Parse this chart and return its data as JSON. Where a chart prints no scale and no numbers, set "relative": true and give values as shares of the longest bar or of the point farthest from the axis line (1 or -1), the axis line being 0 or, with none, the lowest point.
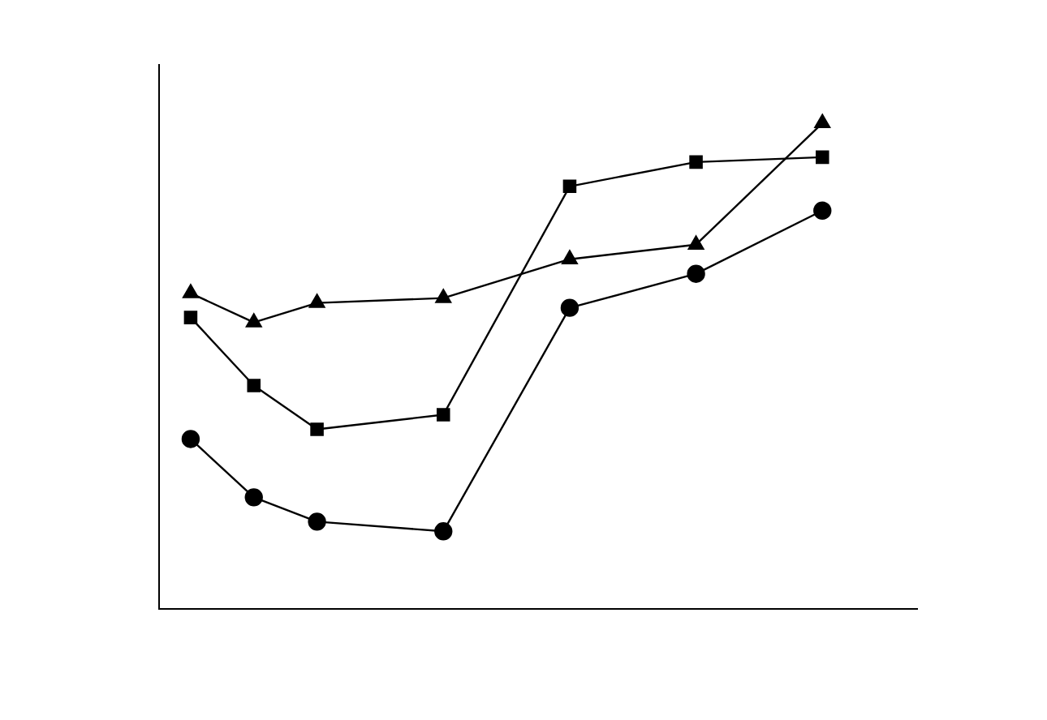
{
  "chart_data": {
    "type": "line",
    "relative": true,
    "categories": [
      null,
      null,
      null,
      null,
      null,
      null,
      null,
      null,
      null,
      null,
      null,
      null
    ],
    "series": [
      {
        "color": "#000000",
        "marker": "square",
        "values": [
          0.6,
          0.46,
          0.37,
          null,
          0.4,
          null,
          0.87,
          null,
          0.92,
          null,
          0.93,
          null
        ]
      },
      {
        "color": "#000000",
        "marker": "circle",
        "values": [
          0.35,
          0.23,
          0.18,
          null,
          0.16,
          null,
          0.62,
          null,
          0.69,
          null,
          0.82,
          null
        ]
      },
      {
        "color": "#000000",
        "marker": "triangle",
        "values": [
          0.65,
          0.59,
          0.63,
          null,
          0.64,
          null,
          0.72,
          null,
          0.75,
          null,
          1,
          null
        ]
      }
    ]
  }
}
